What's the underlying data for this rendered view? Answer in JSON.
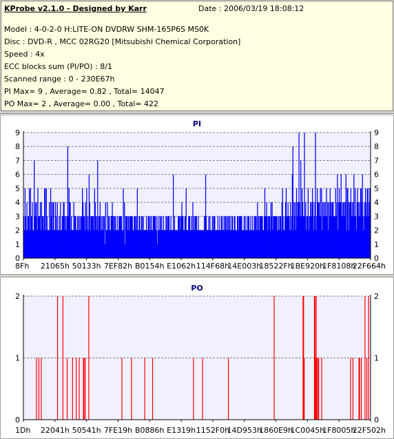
{
  "header": {
    "app_title": "KProbe v2.1.0 - Designed by Karr",
    "date": "Date : 2006/03/19 18:08:12",
    "model": "Model : 4-0-2-0 H:LITE-ON DVDRW SHM-165P6S MS0K",
    "disc": "Disc : DVD-R , MCC 02RG20  [Mitsubishi Chemical Corporation]",
    "speed": "Speed : 4x",
    "ecc": "ECC blocks sum (PI/PO) : 8/1",
    "scanned_range": "Scanned range : 0 - 230E67h",
    "pi_stats": "PI Max= 9 , Average= 0.82 , Total= 14047",
    "po_stats": "PO Max= 2 , Average= 0.00 , Total= 422"
  },
  "colors": {
    "background": "#d4d0c8",
    "info_background": "#ffffe1",
    "plot_background": "#f0f0ff",
    "pi_series": "#0000ff",
    "po_series": "#ff0000",
    "grid": "#808080",
    "title_text": "#000080"
  },
  "chart_data": [
    {
      "type": "bar",
      "title": "PI",
      "ylim": [
        0,
        9
      ],
      "yticks": [
        0,
        1,
        2,
        3,
        4,
        5,
        6,
        7,
        8,
        9
      ],
      "x_tick_labels": [
        "8Fh",
        "21065h",
        "50133h",
        "7EF82h",
        "B0154h",
        "E1062h",
        "114F68h",
        "14E003h",
        "18522Fh",
        "1BE920h",
        "1F8108h",
        "22F664h"
      ],
      "grid": true,
      "series": [
        {
          "values": [
            3,
            2,
            5,
            3,
            2,
            4,
            2,
            3,
            3,
            5,
            2,
            5,
            3,
            3,
            4,
            2,
            2,
            7,
            3,
            4,
            3,
            4,
            2,
            5,
            3,
            3,
            3,
            4,
            2,
            4,
            3,
            3,
            3,
            2,
            5,
            5,
            2,
            5,
            3,
            2,
            2,
            2,
            4,
            2,
            5,
            3,
            4,
            2,
            4,
            4,
            2,
            2,
            4,
            3,
            2,
            4,
            2,
            2,
            3,
            2,
            4,
            2,
            2,
            3,
            3,
            4,
            4,
            3,
            2,
            3,
            2,
            3,
            8,
            3,
            5,
            4,
            4,
            2,
            3,
            2,
            2,
            2,
            4,
            3,
            3,
            3,
            2,
            2,
            3,
            2,
            3,
            2,
            3,
            2,
            3,
            3,
            5,
            4,
            3,
            3,
            2,
            4,
            3,
            5,
            2,
            3,
            2,
            6,
            4,
            2,
            3,
            3,
            3,
            3,
            3,
            2,
            5,
            4,
            3,
            2,
            3,
            7,
            2,
            3,
            3,
            4,
            2,
            3,
            2,
            3,
            2,
            3,
            3,
            1,
            4,
            2,
            2,
            4,
            2,
            3,
            3,
            2,
            2,
            3,
            3,
            4,
            3,
            3,
            2,
            3,
            3,
            2,
            2,
            3,
            2,
            2,
            3,
            3,
            3,
            3,
            3,
            2,
            2,
            5,
            2,
            4,
            1,
            3,
            3,
            3,
            2,
            3,
            3,
            2,
            3,
            3,
            3,
            3,
            3,
            2,
            2,
            3,
            3,
            3,
            2,
            3,
            5,
            2,
            2,
            3,
            3,
            2,
            2,
            3,
            3,
            2,
            3,
            2,
            2,
            2,
            2,
            3,
            2,
            2,
            3,
            3,
            2,
            3,
            2,
            3,
            2,
            2,
            3,
            3,
            3,
            3,
            2,
            3,
            2,
            1,
            3,
            2,
            2,
            3,
            3,
            2,
            3,
            2,
            2,
            3,
            2,
            2,
            2,
            3,
            3,
            2,
            3,
            3,
            3,
            2,
            2,
            3,
            2,
            2,
            2,
            6,
            2,
            3,
            2,
            2,
            2,
            2,
            2,
            3,
            3,
            3,
            2,
            3,
            3,
            4,
            3,
            3,
            2,
            2,
            3,
            3,
            5,
            2,
            2,
            2,
            3,
            3,
            3,
            2,
            2,
            3,
            2,
            4,
            2,
            3,
            2,
            3,
            3,
            3,
            2,
            2,
            3,
            2,
            2,
            2,
            2,
            2,
            2,
            2,
            2,
            2,
            3,
            3,
            6,
            3,
            2,
            2,
            2,
            3,
            2,
            3,
            2,
            2,
            2,
            3,
            2,
            3,
            3,
            3,
            2,
            2,
            2,
            2,
            3,
            2,
            2,
            3,
            2,
            2,
            3,
            3,
            2,
            2,
            3,
            2,
            3,
            3,
            2,
            3,
            2,
            3,
            2,
            3,
            3,
            2,
            2,
            3,
            3,
            2,
            2,
            3,
            3,
            2,
            2,
            2,
            3,
            3,
            2,
            3,
            3,
            3,
            3,
            3,
            2,
            2,
            2,
            3,
            2,
            3,
            2,
            2,
            3,
            2,
            3,
            3,
            2,
            2,
            3,
            2,
            2,
            3,
            2,
            2,
            3,
            3,
            3,
            2,
            3,
            4,
            2,
            3,
            2,
            3,
            3,
            3,
            3,
            3,
            2,
            2,
            3,
            5,
            3,
            3,
            4,
            3,
            2,
            3,
            3,
            3,
            2,
            4,
            3,
            4,
            2,
            3,
            3,
            3,
            3,
            3,
            3,
            2,
            3,
            2,
            3,
            2,
            3,
            3,
            2,
            4,
            5,
            3,
            2,
            2,
            3,
            4,
            5,
            3,
            3,
            4,
            3,
            3,
            2,
            4,
            2,
            3,
            6,
            8,
            2,
            4,
            3,
            4,
            2,
            5,
            3,
            4,
            4,
            9,
            4,
            3,
            7,
            3,
            5,
            4,
            3,
            3,
            9,
            3,
            4,
            2,
            3,
            3,
            5,
            2,
            3,
            3,
            4,
            4,
            3,
            5,
            4,
            2,
            3,
            4,
            9,
            2,
            3,
            5,
            4,
            4,
            4,
            3,
            5,
            3,
            5,
            2,
            4,
            3,
            4,
            3,
            4,
            3,
            5,
            3,
            4,
            2,
            4,
            3,
            5,
            4,
            3,
            4,
            4,
            4,
            3,
            3,
            3,
            5,
            3,
            4,
            6,
            2,
            4,
            5,
            4,
            4,
            6,
            3,
            4,
            3,
            4,
            4,
            3,
            4,
            6,
            2,
            5,
            5,
            4,
            2,
            4,
            4,
            5,
            3,
            4,
            3,
            4,
            6,
            3,
            5,
            3,
            2,
            4,
            5,
            4,
            3,
            4,
            3,
            5,
            5,
            4,
            6,
            3,
            2,
            4,
            3,
            5,
            4,
            3,
            5,
            5,
            3,
            4,
            5,
            5
          ]
        }
      ]
    },
    {
      "type": "bar",
      "title": "PO",
      "ylim": [
        0,
        2
      ],
      "yticks": [
        0,
        1,
        2
      ],
      "x_tick_labels": [
        "1Dh",
        "22041h",
        "50541h",
        "7FE19h",
        "B0886h",
        "E1319h",
        "1152F0h",
        "14D953h",
        "1860E9h",
        "1C0045h",
        "1F8005h",
        "22F502h"
      ],
      "grid": true,
      "series": [
        {
          "values": [
            0,
            0,
            0,
            0,
            0,
            0,
            0,
            0,
            0,
            0,
            0,
            0,
            0,
            0,
            0,
            0,
            0,
            0,
            0,
            0,
            0,
            1,
            0,
            0,
            0,
            1,
            0,
            0,
            0,
            1,
            0,
            0,
            0,
            0,
            0,
            0,
            0,
            0,
            0,
            0,
            0,
            0,
            0,
            0,
            0,
            0,
            0,
            0,
            0,
            0,
            0,
            0,
            0,
            0,
            0,
            0,
            2,
            0,
            0,
            0,
            0,
            0,
            0,
            0,
            0,
            2,
            0,
            0,
            0,
            0,
            0,
            0,
            1,
            0,
            0,
            0,
            0,
            0,
            0,
            0,
            0,
            1,
            0,
            0,
            0,
            0,
            0,
            1,
            0,
            0,
            0,
            0,
            1,
            0,
            0,
            0,
            0,
            0,
            0,
            1,
            1,
            0,
            1,
            0,
            0,
            0,
            0,
            0,
            2,
            0,
            0,
            0,
            0,
            0,
            0,
            0,
            0,
            0,
            0,
            0,
            0,
            0,
            0,
            0,
            0,
            0,
            0,
            0,
            0,
            0,
            0,
            0,
            0,
            0,
            0,
            0,
            0,
            0,
            0,
            0,
            0,
            0,
            0,
            0,
            0,
            0,
            0,
            0,
            0,
            0,
            0,
            0,
            0,
            0,
            0,
            0,
            0,
            0,
            0,
            0,
            0,
            0,
            0,
            1,
            0,
            0,
            0,
            0,
            0,
            0,
            0,
            0,
            0,
            0,
            0,
            0,
            0,
            0,
            0,
            1,
            0,
            0,
            0,
            0,
            0,
            0,
            0,
            0,
            0,
            0,
            0,
            0,
            0,
            0,
            0,
            0,
            0,
            0,
            0,
            0,
            0,
            1,
            0,
            0,
            0,
            0,
            0,
            0,
            0,
            0,
            0,
            0,
            0,
            0,
            1,
            0,
            0,
            0,
            0,
            0,
            0,
            0,
            0,
            0,
            0,
            0,
            0,
            0,
            0,
            0,
            0,
            0,
            0,
            0,
            0,
            0,
            0,
            0,
            0,
            0,
            0,
            0,
            0,
            0,
            0,
            0,
            0,
            0,
            0,
            0,
            0,
            0,
            0,
            0,
            0,
            0,
            0,
            0,
            0,
            0,
            0,
            0,
            0,
            0,
            0,
            0,
            0,
            0,
            0,
            0,
            0,
            0,
            0,
            0,
            0,
            0,
            0,
            0,
            0,
            0,
            0,
            0,
            1,
            0,
            0,
            0,
            0,
            0,
            0,
            0,
            0,
            0,
            0,
            0,
            0,
            0,
            0,
            1,
            0,
            0,
            0,
            0,
            0,
            0,
            0,
            0,
            0,
            0,
            0,
            0,
            0,
            0,
            0,
            0,
            0,
            0,
            0,
            0,
            0,
            0,
            0,
            0,
            0,
            0,
            0,
            0,
            0,
            0,
            0,
            0,
            0,
            0,
            0,
            0,
            0,
            0,
            0,
            0,
            0,
            0,
            1,
            0,
            0,
            0,
            0,
            0,
            0,
            0,
            0,
            0,
            0,
            0,
            0,
            0,
            0,
            0,
            0,
            0,
            0,
            0,
            0,
            0,
            0,
            0,
            0,
            0,
            0,
            0,
            0,
            0,
            0,
            0,
            0,
            0,
            0,
            0,
            0,
            0,
            0,
            0,
            0,
            0,
            0,
            0,
            0,
            0,
            0,
            0,
            0,
            0,
            0,
            0,
            0,
            0,
            0,
            0,
            0,
            0,
            0,
            0,
            0,
            0,
            0,
            0,
            0,
            0,
            0,
            0,
            0,
            0,
            0,
            0,
            0,
            0,
            0,
            0,
            2,
            0,
            0,
            0,
            0,
            0,
            0,
            0,
            0,
            0,
            0,
            0,
            0,
            0,
            0,
            0,
            0,
            0,
            0,
            0,
            0,
            0,
            0,
            0,
            0,
            0,
            0,
            0,
            0,
            0,
            0,
            0,
            0,
            0,
            0,
            0,
            0,
            0,
            0,
            0,
            0,
            0,
            0,
            0,
            0,
            0,
            0,
            0,
            2,
            2,
            1,
            0,
            0,
            0,
            0,
            0,
            0,
            0,
            0,
            0,
            0,
            0,
            0,
            0,
            0,
            0,
            0,
            2,
            2,
            1,
            2,
            1,
            0,
            1,
            1,
            0,
            0,
            0,
            0,
            1,
            0,
            0,
            0,
            0,
            0,
            0,
            0,
            0,
            0,
            0,
            0,
            0,
            0,
            0,
            0,
            0,
            0,
            0,
            0,
            0,
            0,
            0,
            0,
            0,
            0,
            0,
            0,
            0,
            0,
            0,
            0,
            0,
            0,
            0,
            0,
            0,
            0,
            0,
            0,
            0,
            0,
            0,
            0,
            0,
            0,
            0,
            0,
            1,
            0,
            0,
            0,
            1,
            0,
            0,
            0,
            0,
            0,
            0,
            0,
            0,
            0,
            1,
            1,
            0,
            0,
            1,
            0,
            0,
            0,
            0,
            0,
            2,
            0,
            0,
            1,
            0,
            0,
            2,
            0,
            0,
            0
          ]
        }
      ]
    }
  ]
}
